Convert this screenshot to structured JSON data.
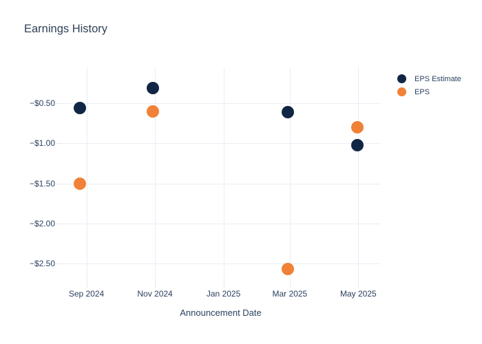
{
  "title": "Earnings History",
  "x_axis": {
    "title": "Announcement Date"
  },
  "legend": {
    "items": [
      {
        "label": "EPS Estimate",
        "color": "#112644"
      },
      {
        "label": "EPS",
        "color": "#f08137"
      }
    ]
  },
  "colors": {
    "background": "#ffffff",
    "gridline": "#e9edf5",
    "tick": "#dfe4ef",
    "text": "#2a3f5f",
    "eps_estimate": "#112644",
    "eps": "#f08137"
  },
  "chart_data": {
    "type": "scatter",
    "title": "Earnings History",
    "xlabel": "Announcement Date",
    "ylabel": "",
    "x_axis_type": "date",
    "xlim": [
      "2024-08-09",
      "2025-05-21"
    ],
    "ylim": [
      -2.75,
      -0.05
    ],
    "grid": true,
    "legend_position": "top-right-outside",
    "marker_size_px": 18,
    "x_ticks": [
      {
        "date": "2024-09-01",
        "label": "Sep 2024"
      },
      {
        "date": "2024-11-01",
        "label": "Nov 2024"
      },
      {
        "date": "2025-01-01",
        "label": "Jan 2025"
      },
      {
        "date": "2025-03-01",
        "label": "Mar 2025"
      },
      {
        "date": "2025-05-01",
        "label": "May 2025"
      }
    ],
    "y_ticks": [
      {
        "value": -0.5,
        "label": "−$0.50"
      },
      {
        "value": -1.0,
        "label": "−$1.00"
      },
      {
        "value": -1.5,
        "label": "−$1.50"
      },
      {
        "value": -2.0,
        "label": "−$2.00"
      },
      {
        "value": -2.5,
        "label": "−$2.50"
      }
    ],
    "series": [
      {
        "name": "EPS Estimate",
        "color": "#112644",
        "points": [
          {
            "date": "2024-08-26",
            "value": -0.56
          },
          {
            "date": "2024-10-30",
            "value": -0.31
          },
          {
            "date": "2025-02-27",
            "value": -0.61
          },
          {
            "date": "2025-04-30",
            "value": -1.02
          }
        ]
      },
      {
        "name": "EPS",
        "color": "#f08137",
        "points": [
          {
            "date": "2024-08-26",
            "value": -1.5
          },
          {
            "date": "2024-10-30",
            "value": -0.6
          },
          {
            "date": "2025-02-27",
            "value": -2.57
          },
          {
            "date": "2025-04-30",
            "value": -0.8
          }
        ]
      }
    ]
  }
}
